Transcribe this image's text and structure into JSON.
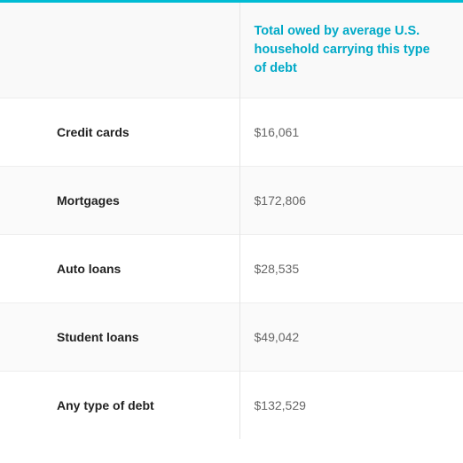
{
  "table": {
    "header": {
      "left": "",
      "right": "Total owed by average U.S. household carrying this type of debt"
    },
    "rows": [
      {
        "label": "Credit cards",
        "value": "$16,061"
      },
      {
        "label": "Mortgages",
        "value": "$172,806"
      },
      {
        "label": "Auto loans",
        "value": "$28,535"
      },
      {
        "label": "Student loans",
        "value": "$49,042"
      },
      {
        "label": "Any type of debt",
        "value": "$132,529"
      }
    ],
    "colors": {
      "accent": "#00bcd4",
      "header_text": "#00a9c7",
      "label_text": "#222222",
      "value_text": "#666666",
      "row_alt_bg": "#fafafa",
      "border": "#e5e5e5"
    }
  }
}
